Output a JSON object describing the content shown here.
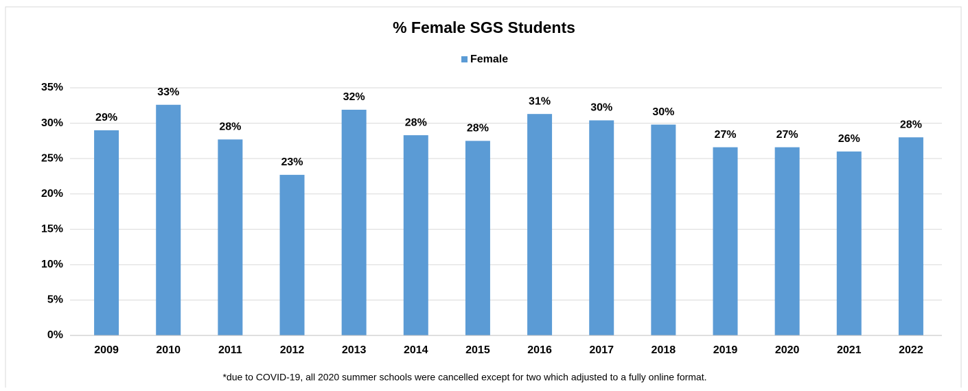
{
  "chart_data": {
    "type": "bar",
    "title": "% Female SGS Students",
    "series": [
      {
        "name": "Female",
        "color": "#5b9bd5",
        "values": [
          29.0,
          32.6,
          27.7,
          22.7,
          31.9,
          28.3,
          27.5,
          31.3,
          30.4,
          29.8,
          26.6,
          26.6,
          26.0,
          28.0
        ],
        "value_labels": [
          "29%",
          "33%",
          "28%",
          "23%",
          "32%",
          "28%",
          "28%",
          "31%",
          "30%",
          "30%",
          "27%",
          "27%",
          "26%",
          "28%"
        ]
      }
    ],
    "categories": [
      "2009",
      "2010",
      "2011",
      "2012",
      "2013",
      "2014",
      "2015",
      "2016",
      "2017",
      "2018",
      "2019",
      "2020",
      "2021",
      "2022"
    ],
    "ylim": [
      0,
      35
    ],
    "yticks": [
      {
        "value": 0,
        "label": "0%"
      },
      {
        "value": 5,
        "label": "5%"
      },
      {
        "value": 10,
        "label": "10%"
      },
      {
        "value": 15,
        "label": "15%"
      },
      {
        "value": 20,
        "label": "20%"
      },
      {
        "value": 25,
        "label": "25%"
      },
      {
        "value": 30,
        "label": "30%"
      },
      {
        "value": 35,
        "label": "35%"
      }
    ],
    "grid": true,
    "legend": "top",
    "annotation": "*due to COVID-19, all 2020 summer schools were cancelled except for two which adjusted to a fully online format."
  }
}
